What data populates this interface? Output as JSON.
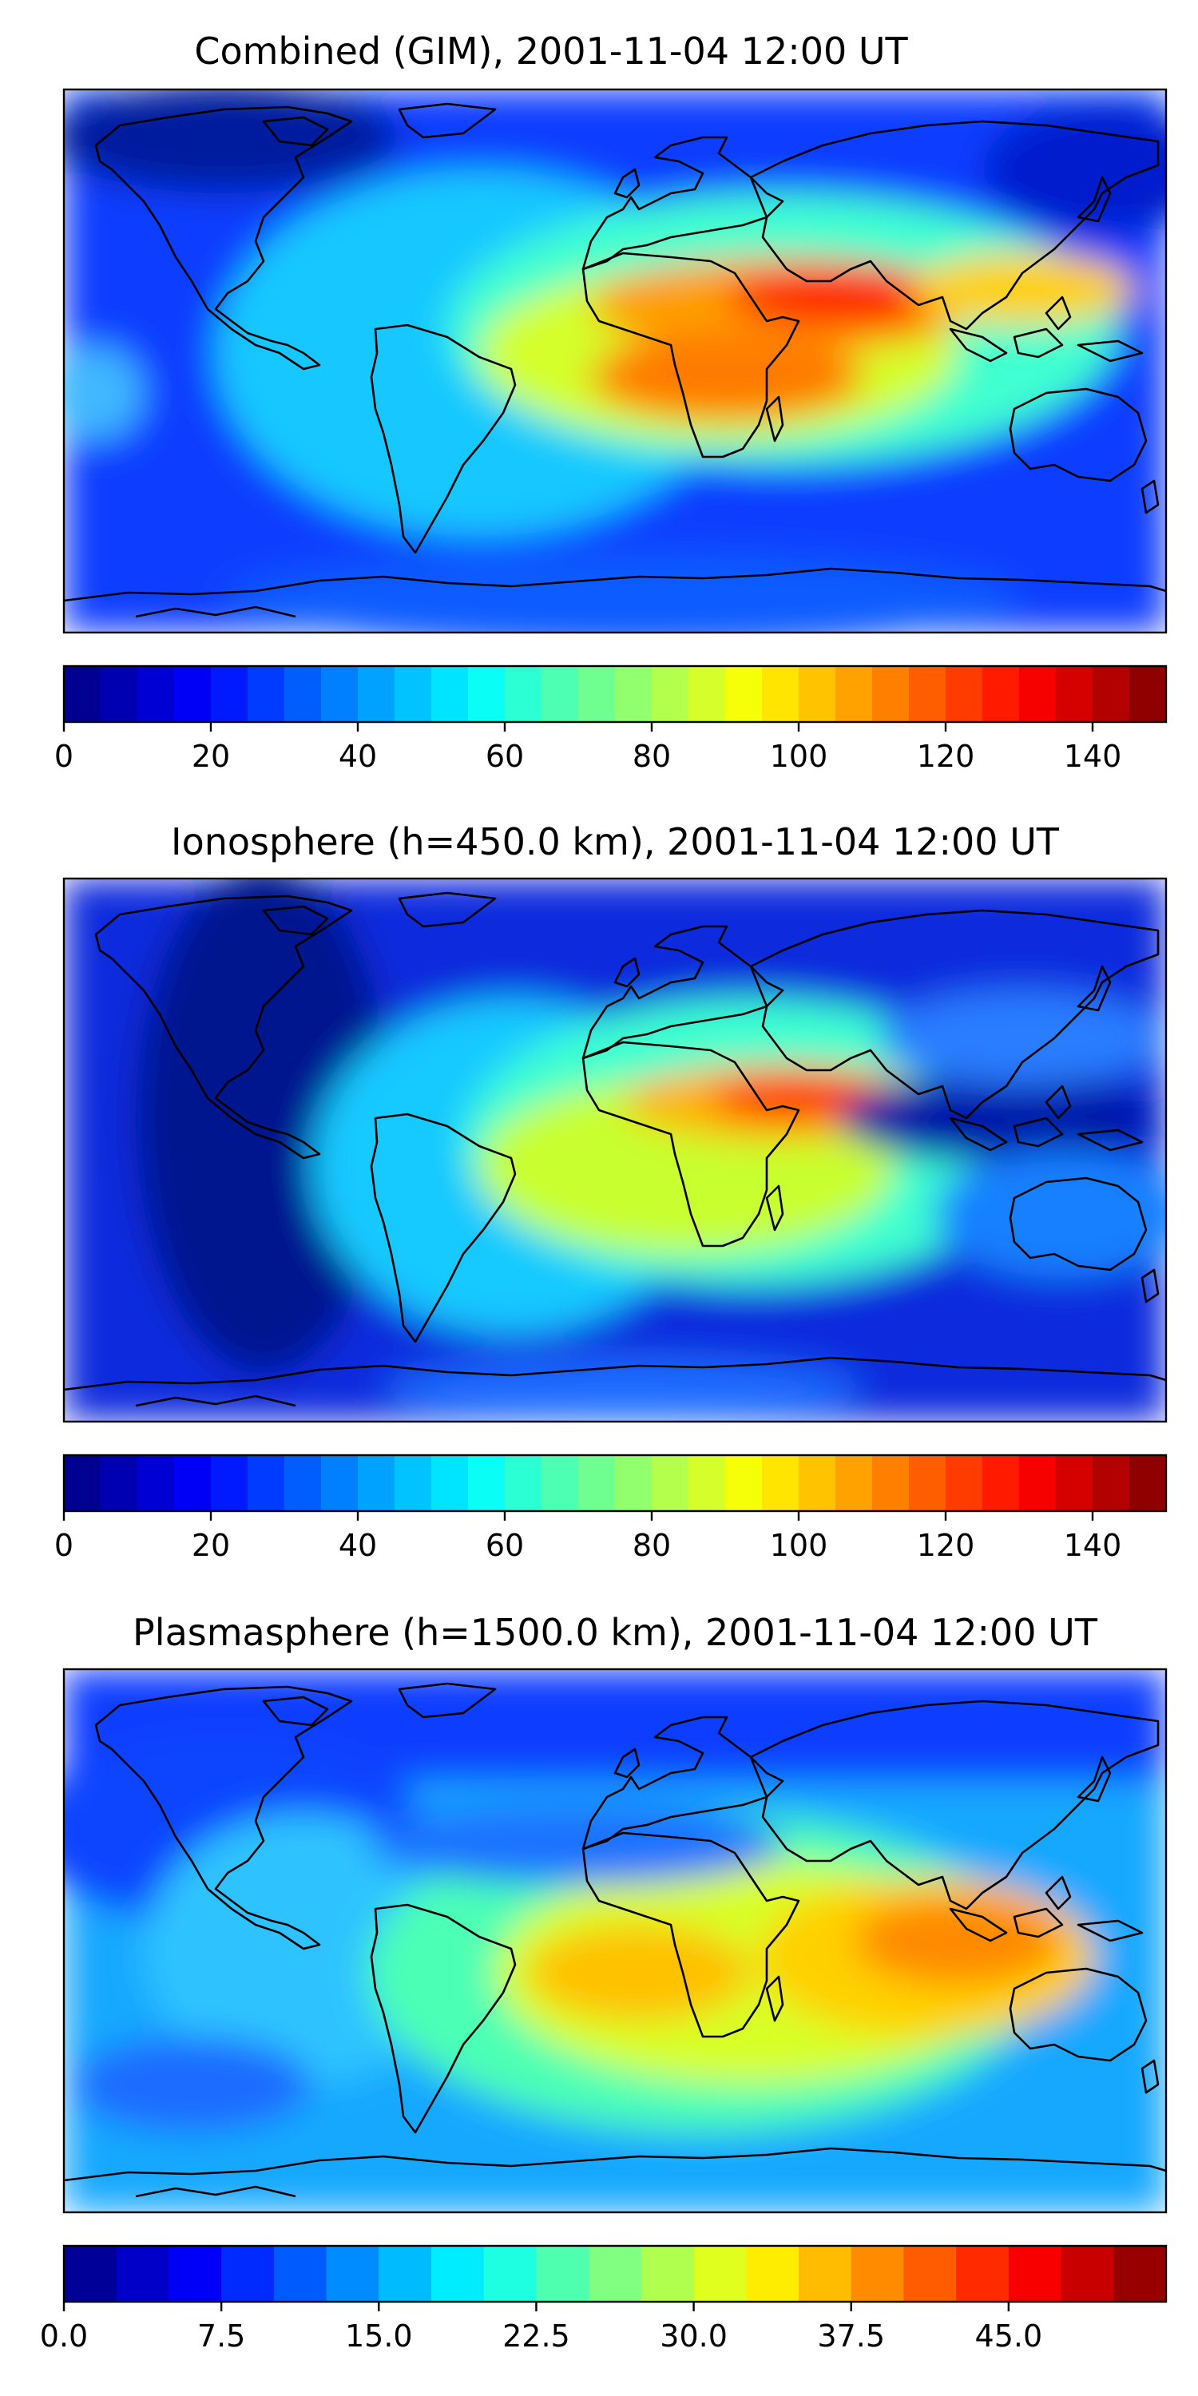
{
  "panels": [
    {
      "title": "Combined (GIM), 2001-11-04 12:00 UT",
      "colorbar": {
        "min": 0,
        "max": 150,
        "levels": 30,
        "ticks": [
          "0",
          "20",
          "40",
          "60",
          "80",
          "100",
          "120",
          "140"
        ],
        "tick_values": [
          0,
          20,
          40,
          60,
          80,
          100,
          120,
          140
        ]
      }
    },
    {
      "title": "Ionosphere  (h=450.0 km), 2001-11-04 12:00 UT",
      "colorbar": {
        "min": 0,
        "max": 150,
        "levels": 30,
        "ticks": [
          "0",
          "20",
          "40",
          "60",
          "80",
          "100",
          "120",
          "140"
        ],
        "tick_values": [
          0,
          20,
          40,
          60,
          80,
          100,
          120,
          140
        ]
      }
    },
    {
      "title": "Plasmasphere (h=1500.0 km), 2001-11-04 12:00 UT",
      "colorbar": {
        "min": 0,
        "max": 52.5,
        "levels": 21,
        "ticks": [
          "0.0",
          "7.5",
          "15.0",
          "22.5",
          "30.0",
          "37.5",
          "45.0"
        ],
        "tick_values": [
          0,
          7.5,
          15,
          22.5,
          30,
          37.5,
          45
        ]
      }
    }
  ],
  "colormap": "jet",
  "colors": {
    "coastline": "#000000",
    "frame": "#000000"
  }
}
